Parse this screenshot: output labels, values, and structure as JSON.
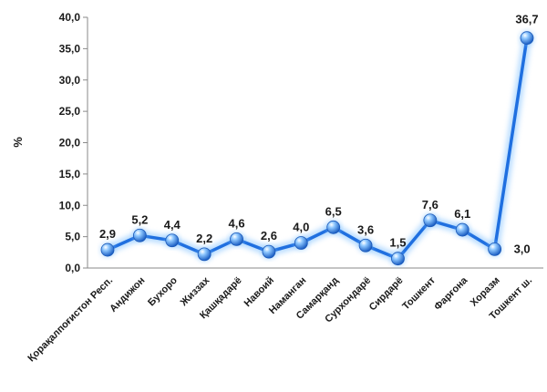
{
  "chart_data": {
    "type": "line",
    "title": "",
    "xlabel": "",
    "ylabel": "%",
    "ylim": [
      0,
      40
    ],
    "yticks": [
      "0,0",
      "5,0",
      "10,0",
      "15,0",
      "20,0",
      "25,0",
      "30,0",
      "35,0",
      "40,0"
    ],
    "categories": [
      "Қорақалпоғистон Респ.",
      "Андижон",
      "Бухоро",
      "Жиззах",
      "Қашқадарё",
      "Навоий",
      "Наманган",
      "Самарқанд",
      "Сурхондарё",
      "Сирдарё",
      "Тошкент",
      "Фарғона",
      "Хоразм",
      "Тошкент ш."
    ],
    "values": [
      2.9,
      5.2,
      4.4,
      2.2,
      4.6,
      2.6,
      4.0,
      6.5,
      3.6,
      1.5,
      7.6,
      6.1,
      3.0,
      36.7
    ],
    "value_labels": [
      "2,9",
      "5,2",
      "4,4",
      "2,2",
      "4,6",
      "2,6",
      "4,0",
      "6,5",
      "3,6",
      "1,5",
      "7,6",
      "6,1",
      "3,0",
      "36,7"
    ],
    "colors": {
      "line": "#1f6fe0",
      "glow": "#7ec0ff",
      "marker": "#4da3f0",
      "axis": "#8a8a8a",
      "label_default": "#1a1a1a",
      "label_min": "#c00000",
      "label_max": "#2e7d32"
    },
    "highlight": {
      "min_index": 9,
      "max_index": 13
    },
    "grid": false,
    "legend": "none"
  }
}
